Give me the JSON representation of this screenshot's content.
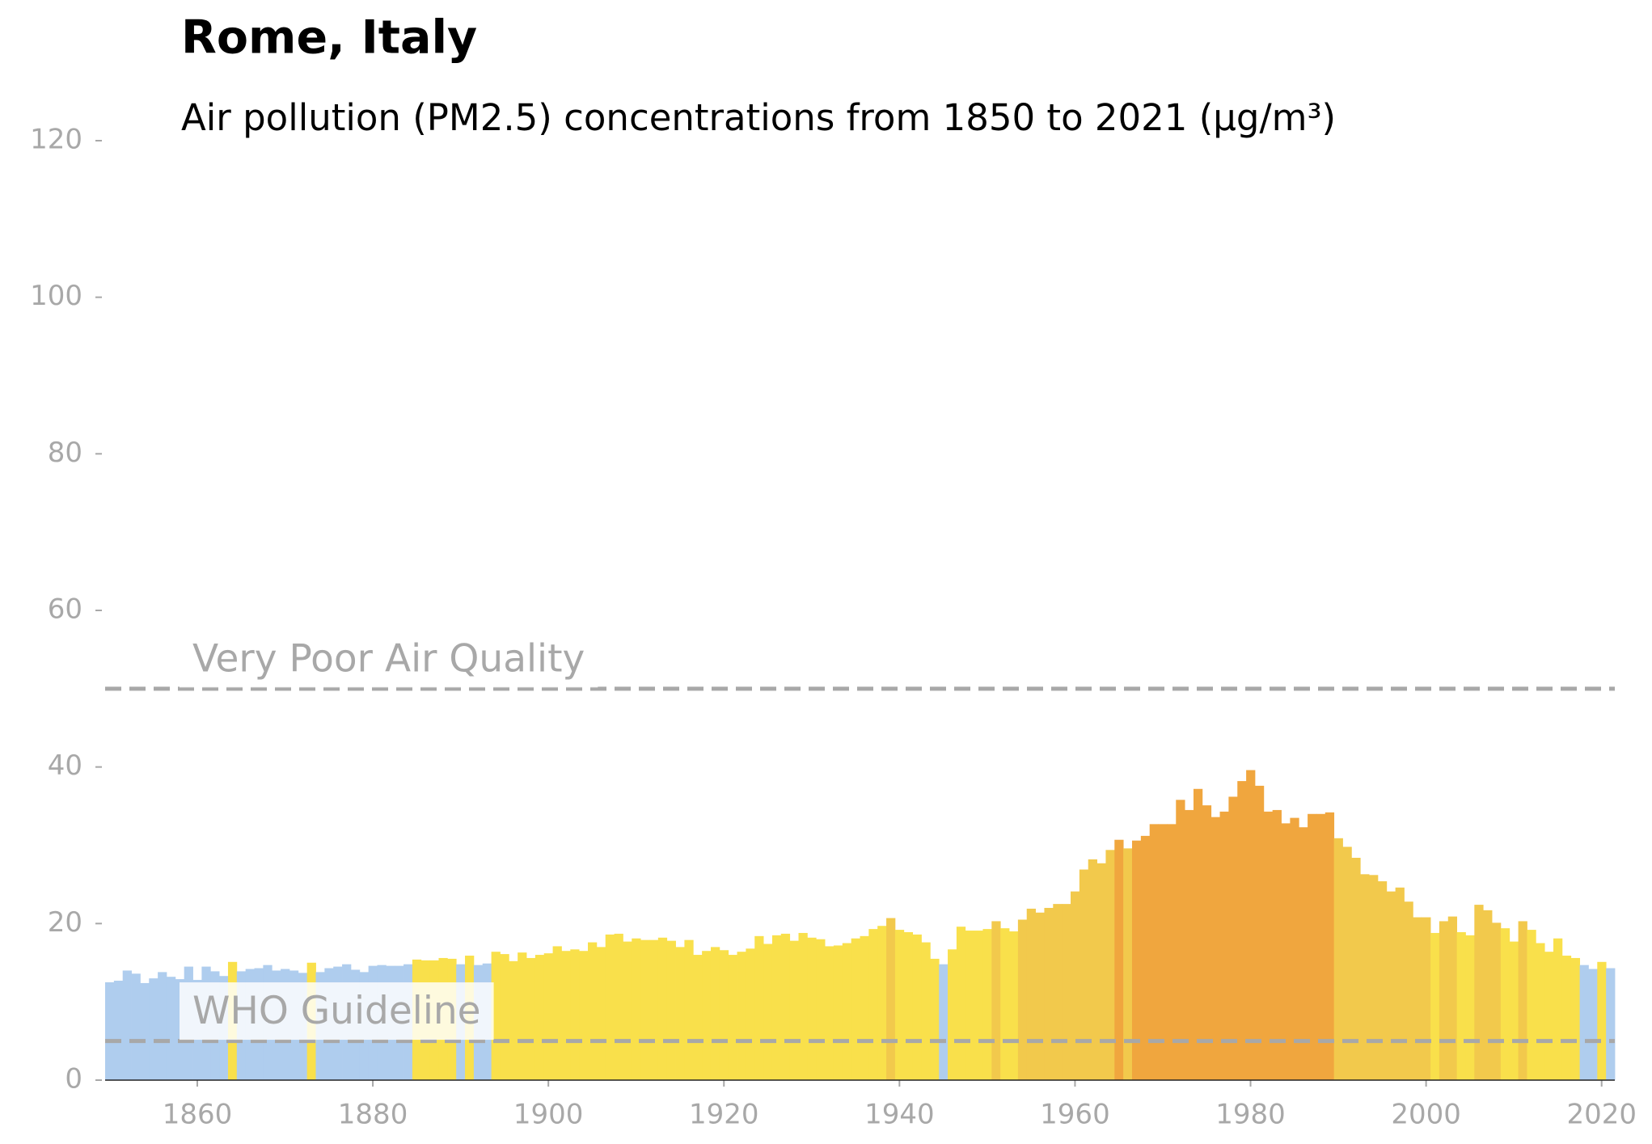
{
  "chart_data": {
    "type": "bar",
    "title": "Rome, Italy",
    "subtitle": "Air pollution (PM2.5) concentrations from 1850 to 2021 (µg/m³)",
    "x": [
      1850,
      1851,
      1852,
      1853,
      1854,
      1855,
      1856,
      1857,
      1858,
      1859,
      1860,
      1861,
      1862,
      1863,
      1864,
      1865,
      1866,
      1867,
      1868,
      1869,
      1870,
      1871,
      1872,
      1873,
      1874,
      1875,
      1876,
      1877,
      1878,
      1879,
      1880,
      1881,
      1882,
      1883,
      1884,
      1885,
      1886,
      1887,
      1888,
      1889,
      1890,
      1891,
      1892,
      1893,
      1894,
      1895,
      1896,
      1897,
      1898,
      1899,
      1900,
      1901,
      1902,
      1903,
      1904,
      1905,
      1906,
      1907,
      1908,
      1909,
      1910,
      1911,
      1912,
      1913,
      1914,
      1915,
      1916,
      1917,
      1918,
      1919,
      1920,
      1921,
      1922,
      1923,
      1924,
      1925,
      1926,
      1927,
      1928,
      1929,
      1930,
      1931,
      1932,
      1933,
      1934,
      1935,
      1936,
      1937,
      1938,
      1939,
      1940,
      1941,
      1942,
      1943,
      1944,
      1945,
      1946,
      1947,
      1948,
      1949,
      1950,
      1951,
      1952,
      1953,
      1954,
      1955,
      1956,
      1957,
      1958,
      1959,
      1960,
      1961,
      1962,
      1963,
      1964,
      1965,
      1966,
      1967,
      1968,
      1969,
      1970,
      1971,
      1972,
      1973,
      1974,
      1975,
      1976,
      1977,
      1978,
      1979,
      1980,
      1981,
      1982,
      1983,
      1984,
      1985,
      1986,
      1987,
      1988,
      1989,
      1990,
      1991,
      1992,
      1993,
      1994,
      1995,
      1996,
      1997,
      1998,
      1999,
      2000,
      2001,
      2002,
      2003,
      2004,
      2005,
      2006,
      2007,
      2008,
      2009,
      2010,
      2011,
      2012,
      2013,
      2014,
      2015,
      2016,
      2017,
      2018,
      2019,
      2020,
      2021
    ],
    "values": [
      12.5,
      12.7,
      14.0,
      13.6,
      12.4,
      13.0,
      13.8,
      13.2,
      12.9,
      14.5,
      12.8,
      14.5,
      13.9,
      13.3,
      15.1,
      13.9,
      14.2,
      14.3,
      14.7,
      14.0,
      14.2,
      14.0,
      13.7,
      15.0,
      13.8,
      14.3,
      14.5,
      14.8,
      14.1,
      13.8,
      14.6,
      14.7,
      14.6,
      14.6,
      14.8,
      15.4,
      15.3,
      15.3,
      15.6,
      15.5,
      14.8,
      15.9,
      14.7,
      14.9,
      16.4,
      16.1,
      15.2,
      16.3,
      15.6,
      16.0,
      16.2,
      17.1,
      16.5,
      16.7,
      16.5,
      17.6,
      17.0,
      18.6,
      18.7,
      17.7,
      18.1,
      17.9,
      17.9,
      18.2,
      17.8,
      17.0,
      17.9,
      16.0,
      16.5,
      17.0,
      16.6,
      16.0,
      16.4,
      16.8,
      18.4,
      17.4,
      18.5,
      18.7,
      17.8,
      18.8,
      18.2,
      18.0,
      17.1,
      17.2,
      17.5,
      18.1,
      18.4,
      19.3,
      19.7,
      20.7,
      19.2,
      18.9,
      18.6,
      17.6,
      15.5,
      14.8,
      16.7,
      19.6,
      19.1,
      19.1,
      19.3,
      20.3,
      19.4,
      19.0,
      20.5,
      21.9,
      21.4,
      22.0,
      22.5,
      22.5,
      24.1,
      26.9,
      28.2,
      27.7,
      29.4,
      30.7,
      29.6,
      30.6,
      31.2,
      32.7,
      32.7,
      32.7,
      35.8,
      34.5,
      37.2,
      35.1,
      33.6,
      34.3,
      36.2,
      38.2,
      39.6,
      37.6,
      34.3,
      34.5,
      32.8,
      33.5,
      32.3,
      34.0,
      34.0,
      34.2,
      30.9,
      29.8,
      28.4,
      26.3,
      26.2,
      25.4,
      24.1,
      24.6,
      22.8,
      20.8,
      20.8,
      18.8,
      20.3,
      20.9,
      18.9,
      18.5,
      22.4,
      21.7,
      20.1,
      19.4,
      17.7,
      20.3,
      19.2,
      17.5,
      16.4,
      18.1,
      15.9,
      15.6,
      14.7,
      14.2,
      15.1,
      14.3
    ],
    "colors": [
      "#afcdee",
      "#afcdee",
      "#afcdee",
      "#afcdee",
      "#afcdee",
      "#afcdee",
      "#afcdee",
      "#afcdee",
      "#afcdee",
      "#afcdee",
      "#afcdee",
      "#afcdee",
      "#afcdee",
      "#afcdee",
      "#f9e04b",
      "#afcdee",
      "#afcdee",
      "#afcdee",
      "#afcdee",
      "#afcdee",
      "#afcdee",
      "#afcdee",
      "#afcdee",
      "#f9e04b",
      "#afcdee",
      "#afcdee",
      "#afcdee",
      "#afcdee",
      "#afcdee",
      "#afcdee",
      "#afcdee",
      "#afcdee",
      "#afcdee",
      "#afcdee",
      "#afcdee",
      "#f9e04b",
      "#f9e04b",
      "#f9e04b",
      "#f9e04b",
      "#f9e04b",
      "#afcdee",
      "#f9e04b",
      "#afcdee",
      "#afcdee",
      "#f9e04b",
      "#f9e04b",
      "#f9e04b",
      "#f9e04b",
      "#f9e04b",
      "#f9e04b",
      "#f9e04b",
      "#f9e04b",
      "#f9e04b",
      "#f9e04b",
      "#f9e04b",
      "#f9e04b",
      "#f9e04b",
      "#f9e04b",
      "#f9e04b",
      "#f9e04b",
      "#f9e04b",
      "#f9e04b",
      "#f9e04b",
      "#f9e04b",
      "#f9e04b",
      "#f9e04b",
      "#f9e04b",
      "#f9e04b",
      "#f9e04b",
      "#f9e04b",
      "#f9e04b",
      "#f9e04b",
      "#f9e04b",
      "#f9e04b",
      "#f9e04b",
      "#f9e04b",
      "#f9e04b",
      "#f9e04b",
      "#f9e04b",
      "#f9e04b",
      "#f9e04b",
      "#f9e04b",
      "#f9e04b",
      "#f9e04b",
      "#f9e04b",
      "#f9e04b",
      "#f9e04b",
      "#f9e04b",
      "#f9e04b",
      "#f2c94c",
      "#f9e04b",
      "#f9e04b",
      "#f9e04b",
      "#f9e04b",
      "#f9e04b",
      "#afcdee",
      "#f9e04b",
      "#f9e04b",
      "#f9e04b",
      "#f9e04b",
      "#f9e04b",
      "#f2c94c",
      "#f9e04b",
      "#f9e04b",
      "#f2c94c",
      "#f2c94c",
      "#f2c94c",
      "#f2c94c",
      "#f2c94c",
      "#f2c94c",
      "#f2c94c",
      "#f2c94c",
      "#f2c94c",
      "#f2c94c",
      "#f2c94c",
      "#f0a63e",
      "#f2c94c",
      "#f0a63e",
      "#f0a63e",
      "#f0a63e",
      "#f0a63e",
      "#f0a63e",
      "#f0a63e",
      "#f0a63e",
      "#f0a63e",
      "#f0a63e",
      "#f0a63e",
      "#f0a63e",
      "#f0a63e",
      "#f0a63e",
      "#f0a63e",
      "#f0a63e",
      "#f0a63e",
      "#f0a63e",
      "#f0a63e",
      "#f0a63e",
      "#f0a63e",
      "#f0a63e",
      "#f0a63e",
      "#f0a63e",
      "#f2c94c",
      "#f2c94c",
      "#f2c94c",
      "#f2c94c",
      "#f2c94c",
      "#f2c94c",
      "#f2c94c",
      "#f2c94c",
      "#f2c94c",
      "#f2c94c",
      "#f2c94c",
      "#f9e04b",
      "#f2c94c",
      "#f2c94c",
      "#f9e04b",
      "#f9e04b",
      "#f2c94c",
      "#f2c94c",
      "#f2c94c",
      "#f9e04b",
      "#f9e04b",
      "#f2c94c",
      "#f9e04b",
      "#f9e04b",
      "#f9e04b",
      "#f9e04b",
      "#f9e04b",
      "#f9e04b",
      "#afcdee",
      "#afcdee",
      "#f9e04b",
      "#afcdee"
    ],
    "xlim": [
      1849.5,
      2021.5
    ],
    "xticks": [
      1860,
      1880,
      1900,
      1920,
      1940,
      1960,
      1980,
      2000,
      2020
    ],
    "ylim": [
      0,
      120
    ],
    "yticks": [
      0,
      20,
      40,
      60,
      80,
      100,
      120
    ],
    "reference_lines": [
      {
        "value": 50,
        "label": "Very Poor Air Quality"
      },
      {
        "value": 5,
        "label": "WHO Guideline"
      }
    ]
  }
}
